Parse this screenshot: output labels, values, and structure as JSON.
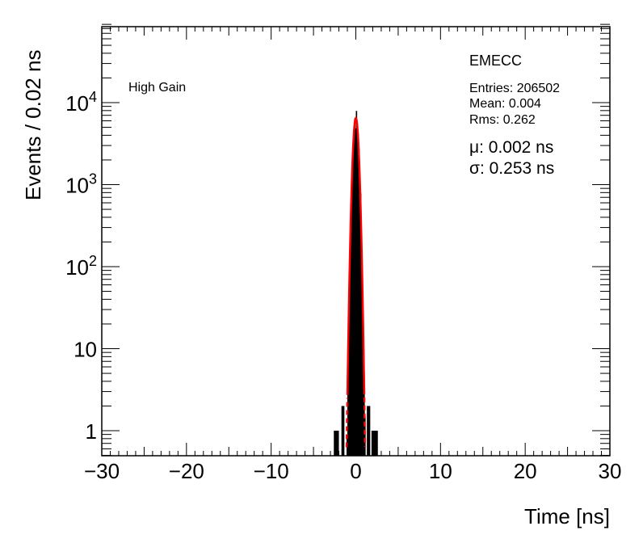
{
  "chart_data": {
    "type": "histogram",
    "xlabel": "Time [ns]",
    "ylabel": "Events / 0.02 ns",
    "xlim": [
      -30,
      30
    ],
    "ylim": [
      0.5,
      90000
    ],
    "y_scale": "log",
    "x_ticks": [
      {
        "value": -30,
        "label": "−30"
      },
      {
        "value": -20,
        "label": "−20"
      },
      {
        "value": -10,
        "label": "−10"
      },
      {
        "value": 0,
        "label": "0"
      },
      {
        "value": 10,
        "label": "10"
      },
      {
        "value": 20,
        "label": "20"
      },
      {
        "value": 30,
        "label": "30"
      }
    ],
    "y_ticks": [
      {
        "value": 1,
        "base": "1",
        "exp": ""
      },
      {
        "value": 10,
        "base": "10",
        "exp": ""
      },
      {
        "value": 100,
        "base": "10",
        "exp": "2"
      },
      {
        "value": 1000,
        "base": "10",
        "exp": "3"
      },
      {
        "value": 10000,
        "base": "10",
        "exp": "4"
      }
    ],
    "label_left": "High Gain",
    "stats": {
      "name": "EMECC",
      "entries": "Entries: 206502",
      "mean": "Mean: 0.004",
      "rms": "Rms: 0.262"
    },
    "fit": {
      "type": "gaussian",
      "mu": 0.002,
      "sigma": 0.253,
      "amplitude": 6500,
      "mu_label": "μ: 0.002 ns",
      "sigma_label": "σ: 0.253 ns",
      "color": "#ff0000"
    },
    "histogram_color": "#000000",
    "outlier_bins": [
      {
        "x0": -2.6,
        "x1": -2.0,
        "count": 1
      },
      {
        "x0": -1.7,
        "x1": -1.35,
        "count": 2
      },
      {
        "x0": 1.3,
        "x1": 1.7,
        "count": 2
      },
      {
        "x0": 1.85,
        "x1": 2.6,
        "count": 1
      }
    ]
  }
}
